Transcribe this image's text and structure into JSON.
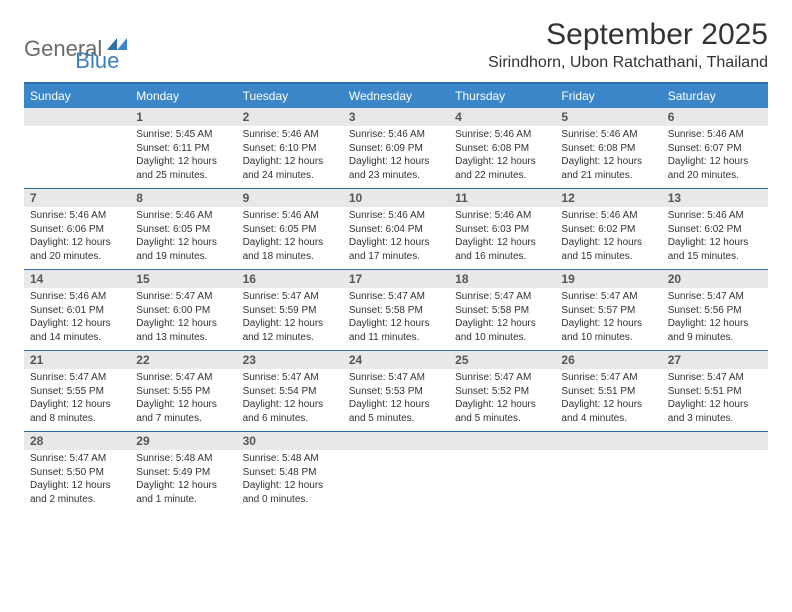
{
  "logo": {
    "text1": "General",
    "text2": "Blue"
  },
  "title": "September 2025",
  "location": "Sirindhorn, Ubon Ratchathani, Thailand",
  "colors": {
    "header_bg": "#3a86c8",
    "header_border": "#2f6fa8",
    "daynum_bg": "#e8e8e8",
    "logo_gray": "#6a6a6a",
    "logo_blue": "#3a80c3",
    "page_bg": "#ffffff"
  },
  "typography": {
    "title_fontsize": 30,
    "location_fontsize": 16,
    "header_fontsize": 12,
    "daynum_fontsize": 12,
    "body_fontsize": 10
  },
  "layout": {
    "columns": 7,
    "rows": 5,
    "aspect": "792x612"
  },
  "weekdays": [
    "Sunday",
    "Monday",
    "Tuesday",
    "Wednesday",
    "Thursday",
    "Friday",
    "Saturday"
  ],
  "weeks": [
    [
      {
        "n": "",
        "sunrise": "",
        "sunset": "",
        "daylight": ""
      },
      {
        "n": "1",
        "sunrise": "Sunrise: 5:45 AM",
        "sunset": "Sunset: 6:11 PM",
        "daylight": "Daylight: 12 hours and 25 minutes."
      },
      {
        "n": "2",
        "sunrise": "Sunrise: 5:46 AM",
        "sunset": "Sunset: 6:10 PM",
        "daylight": "Daylight: 12 hours and 24 minutes."
      },
      {
        "n": "3",
        "sunrise": "Sunrise: 5:46 AM",
        "sunset": "Sunset: 6:09 PM",
        "daylight": "Daylight: 12 hours and 23 minutes."
      },
      {
        "n": "4",
        "sunrise": "Sunrise: 5:46 AM",
        "sunset": "Sunset: 6:08 PM",
        "daylight": "Daylight: 12 hours and 22 minutes."
      },
      {
        "n": "5",
        "sunrise": "Sunrise: 5:46 AM",
        "sunset": "Sunset: 6:08 PM",
        "daylight": "Daylight: 12 hours and 21 minutes."
      },
      {
        "n": "6",
        "sunrise": "Sunrise: 5:46 AM",
        "sunset": "Sunset: 6:07 PM",
        "daylight": "Daylight: 12 hours and 20 minutes."
      }
    ],
    [
      {
        "n": "7",
        "sunrise": "Sunrise: 5:46 AM",
        "sunset": "Sunset: 6:06 PM",
        "daylight": "Daylight: 12 hours and 20 minutes."
      },
      {
        "n": "8",
        "sunrise": "Sunrise: 5:46 AM",
        "sunset": "Sunset: 6:05 PM",
        "daylight": "Daylight: 12 hours and 19 minutes."
      },
      {
        "n": "9",
        "sunrise": "Sunrise: 5:46 AM",
        "sunset": "Sunset: 6:05 PM",
        "daylight": "Daylight: 12 hours and 18 minutes."
      },
      {
        "n": "10",
        "sunrise": "Sunrise: 5:46 AM",
        "sunset": "Sunset: 6:04 PM",
        "daylight": "Daylight: 12 hours and 17 minutes."
      },
      {
        "n": "11",
        "sunrise": "Sunrise: 5:46 AM",
        "sunset": "Sunset: 6:03 PM",
        "daylight": "Daylight: 12 hours and 16 minutes."
      },
      {
        "n": "12",
        "sunrise": "Sunrise: 5:46 AM",
        "sunset": "Sunset: 6:02 PM",
        "daylight": "Daylight: 12 hours and 15 minutes."
      },
      {
        "n": "13",
        "sunrise": "Sunrise: 5:46 AM",
        "sunset": "Sunset: 6:02 PM",
        "daylight": "Daylight: 12 hours and 15 minutes."
      }
    ],
    [
      {
        "n": "14",
        "sunrise": "Sunrise: 5:46 AM",
        "sunset": "Sunset: 6:01 PM",
        "daylight": "Daylight: 12 hours and 14 minutes."
      },
      {
        "n": "15",
        "sunrise": "Sunrise: 5:47 AM",
        "sunset": "Sunset: 6:00 PM",
        "daylight": "Daylight: 12 hours and 13 minutes."
      },
      {
        "n": "16",
        "sunrise": "Sunrise: 5:47 AM",
        "sunset": "Sunset: 5:59 PM",
        "daylight": "Daylight: 12 hours and 12 minutes."
      },
      {
        "n": "17",
        "sunrise": "Sunrise: 5:47 AM",
        "sunset": "Sunset: 5:58 PM",
        "daylight": "Daylight: 12 hours and 11 minutes."
      },
      {
        "n": "18",
        "sunrise": "Sunrise: 5:47 AM",
        "sunset": "Sunset: 5:58 PM",
        "daylight": "Daylight: 12 hours and 10 minutes."
      },
      {
        "n": "19",
        "sunrise": "Sunrise: 5:47 AM",
        "sunset": "Sunset: 5:57 PM",
        "daylight": "Daylight: 12 hours and 10 minutes."
      },
      {
        "n": "20",
        "sunrise": "Sunrise: 5:47 AM",
        "sunset": "Sunset: 5:56 PM",
        "daylight": "Daylight: 12 hours and 9 minutes."
      }
    ],
    [
      {
        "n": "21",
        "sunrise": "Sunrise: 5:47 AM",
        "sunset": "Sunset: 5:55 PM",
        "daylight": "Daylight: 12 hours and 8 minutes."
      },
      {
        "n": "22",
        "sunrise": "Sunrise: 5:47 AM",
        "sunset": "Sunset: 5:55 PM",
        "daylight": "Daylight: 12 hours and 7 minutes."
      },
      {
        "n": "23",
        "sunrise": "Sunrise: 5:47 AM",
        "sunset": "Sunset: 5:54 PM",
        "daylight": "Daylight: 12 hours and 6 minutes."
      },
      {
        "n": "24",
        "sunrise": "Sunrise: 5:47 AM",
        "sunset": "Sunset: 5:53 PM",
        "daylight": "Daylight: 12 hours and 5 minutes."
      },
      {
        "n": "25",
        "sunrise": "Sunrise: 5:47 AM",
        "sunset": "Sunset: 5:52 PM",
        "daylight": "Daylight: 12 hours and 5 minutes."
      },
      {
        "n": "26",
        "sunrise": "Sunrise: 5:47 AM",
        "sunset": "Sunset: 5:51 PM",
        "daylight": "Daylight: 12 hours and 4 minutes."
      },
      {
        "n": "27",
        "sunrise": "Sunrise: 5:47 AM",
        "sunset": "Sunset: 5:51 PM",
        "daylight": "Daylight: 12 hours and 3 minutes."
      }
    ],
    [
      {
        "n": "28",
        "sunrise": "Sunrise: 5:47 AM",
        "sunset": "Sunset: 5:50 PM",
        "daylight": "Daylight: 12 hours and 2 minutes."
      },
      {
        "n": "29",
        "sunrise": "Sunrise: 5:48 AM",
        "sunset": "Sunset: 5:49 PM",
        "daylight": "Daylight: 12 hours and 1 minute."
      },
      {
        "n": "30",
        "sunrise": "Sunrise: 5:48 AM",
        "sunset": "Sunset: 5:48 PM",
        "daylight": "Daylight: 12 hours and 0 minutes."
      },
      {
        "n": "",
        "sunrise": "",
        "sunset": "",
        "daylight": ""
      },
      {
        "n": "",
        "sunrise": "",
        "sunset": "",
        "daylight": ""
      },
      {
        "n": "",
        "sunrise": "",
        "sunset": "",
        "daylight": ""
      },
      {
        "n": "",
        "sunrise": "",
        "sunset": "",
        "daylight": ""
      }
    ]
  ]
}
